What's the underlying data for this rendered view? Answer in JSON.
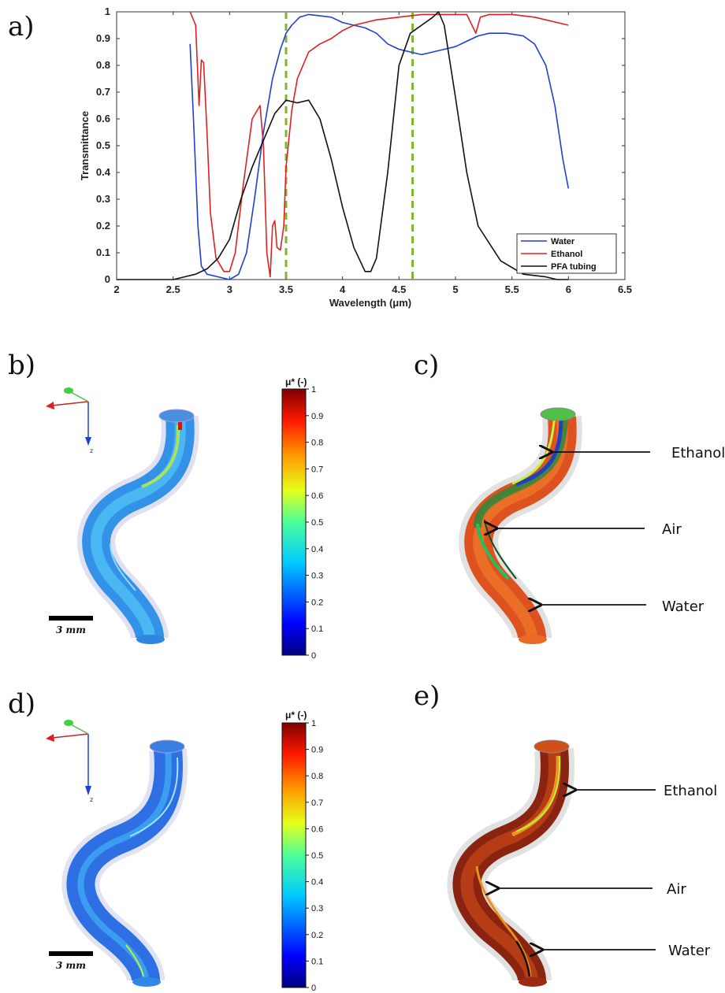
{
  "panels": {
    "a": "a)",
    "b": "b)",
    "c": "c)",
    "d": "d)",
    "e": "e)"
  },
  "chart_data": {
    "type": "line",
    "xlabel": "Wavelength (μm)",
    "ylabel": "Transmittance",
    "xlim": [
      2,
      6.5
    ],
    "ylim": [
      0,
      1
    ],
    "xticks": [
      "2",
      "2.5",
      "3",
      "3.5",
      "4",
      "4.5",
      "5",
      "5.5",
      "6",
      "6.5"
    ],
    "yticks": [
      "0",
      "0.1",
      "0.2",
      "0.3",
      "0.4",
      "0.5",
      "0.6",
      "0.7",
      "0.8",
      "0.9",
      "1"
    ],
    "legend_position": "bottom-right",
    "vlines": [
      3.5,
      4.62
    ],
    "series": [
      {
        "name": "Water",
        "color": "#1f3fd6",
        "x": [
          2.65,
          2.68,
          2.72,
          2.75,
          2.8,
          2.9,
          3.0,
          3.08,
          3.15,
          3.22,
          3.3,
          3.38,
          3.45,
          3.5,
          3.55,
          3.62,
          3.7,
          3.8,
          3.9,
          4.0,
          4.1,
          4.2,
          4.3,
          4.4,
          4.5,
          4.6,
          4.7,
          4.8,
          4.9,
          5.0,
          5.1,
          5.2,
          5.3,
          5.45,
          5.6,
          5.7,
          5.8,
          5.88,
          5.95,
          6.0
        ],
        "y": [
          0.88,
          0.6,
          0.2,
          0.05,
          0.02,
          0.01,
          0.0,
          0.02,
          0.1,
          0.3,
          0.55,
          0.75,
          0.86,
          0.92,
          0.95,
          0.98,
          0.99,
          0.985,
          0.98,
          0.96,
          0.95,
          0.94,
          0.92,
          0.88,
          0.86,
          0.85,
          0.84,
          0.85,
          0.86,
          0.87,
          0.89,
          0.91,
          0.92,
          0.92,
          0.91,
          0.88,
          0.8,
          0.65,
          0.45,
          0.34
        ]
      },
      {
        "name": "Ethanol",
        "color": "#e02020",
        "x": [
          2.65,
          2.7,
          2.73,
          2.75,
          2.77,
          2.8,
          2.83,
          2.88,
          2.95,
          3.0,
          3.05,
          3.12,
          3.2,
          3.27,
          3.3,
          3.33,
          3.36,
          3.38,
          3.4,
          3.42,
          3.45,
          3.48,
          3.5,
          3.55,
          3.6,
          3.7,
          3.8,
          3.9,
          4.0,
          4.1,
          4.2,
          4.3,
          4.5,
          4.7,
          4.9,
          5.1,
          5.18,
          5.22,
          5.3,
          5.5,
          5.7,
          6.0
        ],
        "y": [
          1.0,
          0.95,
          0.65,
          0.82,
          0.81,
          0.55,
          0.25,
          0.08,
          0.03,
          0.03,
          0.1,
          0.35,
          0.6,
          0.65,
          0.5,
          0.1,
          0.01,
          0.2,
          0.22,
          0.12,
          0.11,
          0.2,
          0.42,
          0.63,
          0.75,
          0.85,
          0.88,
          0.9,
          0.93,
          0.95,
          0.96,
          0.97,
          0.98,
          0.99,
          0.99,
          0.99,
          0.92,
          0.98,
          0.99,
          0.99,
          0.98,
          0.95
        ]
      },
      {
        "name": "PFA tubing",
        "color": "#111111",
        "x": [
          2.0,
          2.3,
          2.5,
          2.6,
          2.7,
          2.8,
          2.9,
          3.0,
          3.1,
          3.2,
          3.3,
          3.4,
          3.5,
          3.6,
          3.7,
          3.8,
          3.9,
          4.0,
          4.1,
          4.2,
          4.25,
          4.3,
          4.4,
          4.5,
          4.6,
          4.7,
          4.8,
          4.85,
          4.9,
          5.0,
          5.1,
          5.2,
          5.4,
          5.6,
          5.8,
          5.9,
          6.0
        ],
        "y": [
          0.0,
          0.0,
          0.0,
          0.01,
          0.02,
          0.04,
          0.08,
          0.15,
          0.3,
          0.42,
          0.52,
          0.62,
          0.67,
          0.66,
          0.67,
          0.6,
          0.45,
          0.27,
          0.12,
          0.03,
          0.03,
          0.08,
          0.4,
          0.8,
          0.92,
          0.95,
          0.98,
          1.0,
          0.95,
          0.68,
          0.4,
          0.2,
          0.07,
          0.02,
          0.01,
          0.0,
          0.0
        ]
      }
    ]
  },
  "colorbar": {
    "title": "μ* (-)",
    "ticks": [
      "0",
      "0.1",
      "0.2",
      "0.3",
      "0.4",
      "0.5",
      "0.6",
      "0.7",
      "0.8",
      "0.9",
      "1"
    ]
  },
  "scale_bar": "3 mm",
  "annotations": {
    "c": [
      "Ethanol",
      "Air",
      "Water"
    ],
    "e": [
      "Ethanol",
      "Air",
      "Water"
    ]
  },
  "axis_gizmo_label": "z"
}
